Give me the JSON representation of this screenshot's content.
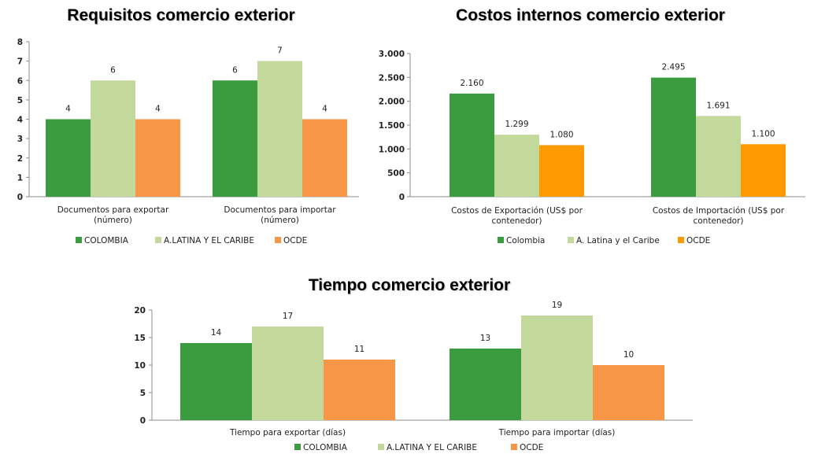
{
  "chart_data": [
    {
      "type": "bar",
      "title": "Requisitos comercio exterior",
      "categories": [
        [
          "Documentos para exportar",
          "(número)"
        ],
        [
          "Documentos para importar",
          "(número)"
        ]
      ],
      "series": [
        {
          "name": "COLOMBIA",
          "values": [
            4,
            6
          ],
          "color": "#3a9c3e"
        },
        {
          "name": "A.LATINA Y EL CARIBE",
          "values": [
            6,
            7
          ],
          "color": "#c3d99c"
        },
        {
          "name": "OCDE",
          "values": [
            4,
            4
          ],
          "color": "#f79646"
        }
      ],
      "ylim": [
        0,
        8
      ],
      "yticks": [
        0,
        1,
        2,
        3,
        4,
        5,
        6,
        7,
        8
      ],
      "ytick_labels": [
        "0",
        "1",
        "2",
        "3",
        "4",
        "5",
        "6",
        "7",
        "8"
      ],
      "value_labels": [
        [
          "4",
          "6"
        ],
        [
          "6",
          "7"
        ],
        [
          "4",
          "4"
        ]
      ],
      "grid": false,
      "legend": "bottom"
    },
    {
      "type": "bar",
      "title": "Costos internos comercio exterior",
      "categories": [
        [
          "Costos de Exportación (US$ por",
          "contenedor)"
        ],
        [
          "Costos de Importación (US$ por",
          "contenedor)"
        ]
      ],
      "series": [
        {
          "name": "Colombia",
          "values": [
            2160,
            2495
          ],
          "color": "#3a9c3e"
        },
        {
          "name": "A. Latina y el Caribe",
          "values": [
            1299,
            1691
          ],
          "color": "#c3d99c"
        },
        {
          "name": "OCDE",
          "values": [
            1080,
            1100
          ],
          "color": "#ff9900"
        }
      ],
      "ylim": [
        0,
        3000
      ],
      "yticks": [
        0,
        500,
        1000,
        1500,
        2000,
        2500,
        3000
      ],
      "ytick_labels": [
        "0",
        "500",
        "1.000",
        "1.500",
        "2.000",
        "2.500",
        "3.000"
      ],
      "value_labels": [
        [
          "2.160",
          "2.495"
        ],
        [
          "1.299",
          "1.691"
        ],
        [
          "1.080",
          "1.100"
        ]
      ],
      "grid": false,
      "legend": "bottom"
    },
    {
      "type": "bar",
      "title": "Tiempo comercio exterior",
      "categories": [
        [
          "Tiempo para exportar (días)"
        ],
        [
          "Tiempo para importar (días)"
        ]
      ],
      "series": [
        {
          "name": "COLOMBIA",
          "values": [
            14,
            13
          ],
          "color": "#3a9c3e"
        },
        {
          "name": "A.LATINA Y EL CARIBE",
          "values": [
            17,
            19
          ],
          "color": "#c3d99c"
        },
        {
          "name": "OCDE",
          "values": [
            11,
            10
          ],
          "color": "#f79646"
        }
      ],
      "ylim": [
        0,
        20
      ],
      "yticks": [
        0,
        5,
        10,
        15,
        20
      ],
      "ytick_labels": [
        "0",
        "5",
        "10",
        "15",
        "20"
      ],
      "value_labels": [
        [
          "14",
          "13"
        ],
        [
          "17",
          "19"
        ],
        [
          "11",
          "10"
        ]
      ],
      "grid": false,
      "legend": "bottom"
    }
  ]
}
